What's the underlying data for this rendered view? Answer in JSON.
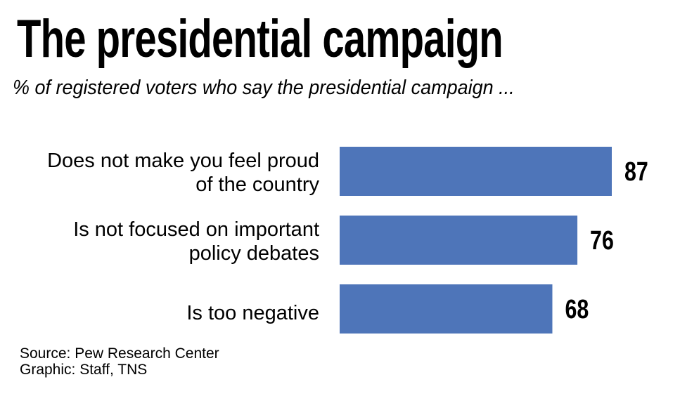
{
  "chart_data": {
    "type": "bar",
    "orientation": "horizontal",
    "title": "The presidential campaign",
    "subtitle": "% of registered voters who say the presidential campaign ...",
    "categories": [
      "Does not make you feel proud\nof the country",
      "Is not focused on important\npolicy debates",
      "Is too negative"
    ],
    "values": [
      87,
      76,
      68
    ],
    "value_labels": [
      "87",
      "76",
      "68"
    ],
    "xlabel": "",
    "ylabel": "",
    "xlim": [
      0,
      87
    ],
    "grid": false,
    "legend": "none",
    "bar_color": "#4e75b9"
  },
  "footer": {
    "source": "Source: Pew Research Center",
    "credit": "Graphic: Staff, TNS"
  }
}
